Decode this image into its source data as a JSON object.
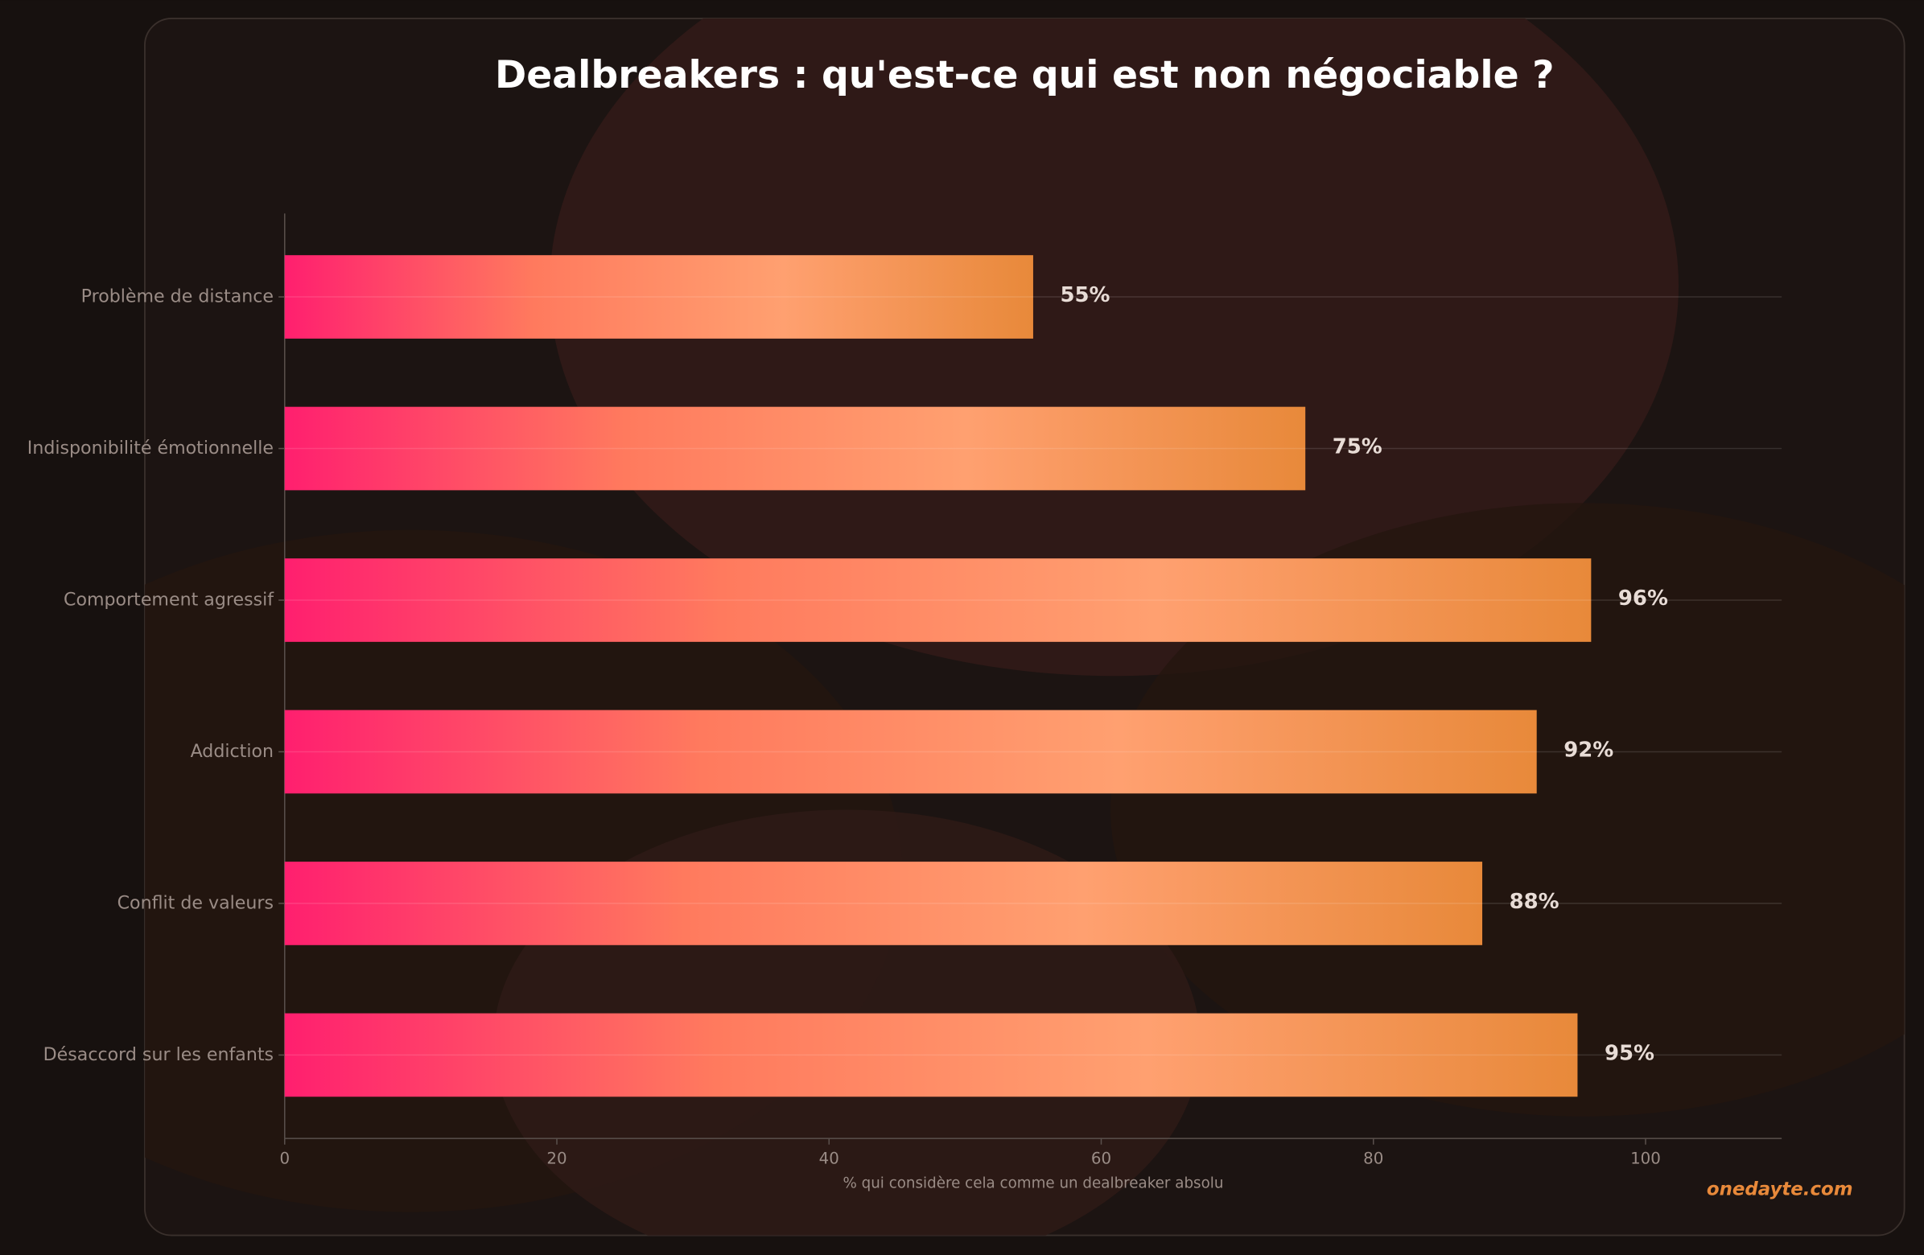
{
  "chart_data": {
    "type": "barh",
    "title": "Dealbreakers : qu'est-ce qui est non négociable ?",
    "categories": [
      "Problème de distance",
      "Indisponibilité émotionnelle",
      "Comportement agressif",
      "Addiction",
      "Conflit de valeurs",
      "Désaccord sur les enfants"
    ],
    "values": [
      55,
      75,
      96,
      92,
      88,
      95
    ],
    "value_labels": [
      "55%",
      "75%",
      "96%",
      "92%",
      "88%",
      "95%"
    ],
    "xlim": [
      0,
      110
    ],
    "xticks": [
      0,
      20,
      40,
      60,
      80,
      100
    ],
    "xlabel": "% qui considère cela comme un dealbreaker absolu",
    "colors": [
      "#ff1f6f",
      "#ff7a5e",
      "#ffa070",
      "#e8893a"
    ],
    "watermark": "onedayte.com"
  }
}
